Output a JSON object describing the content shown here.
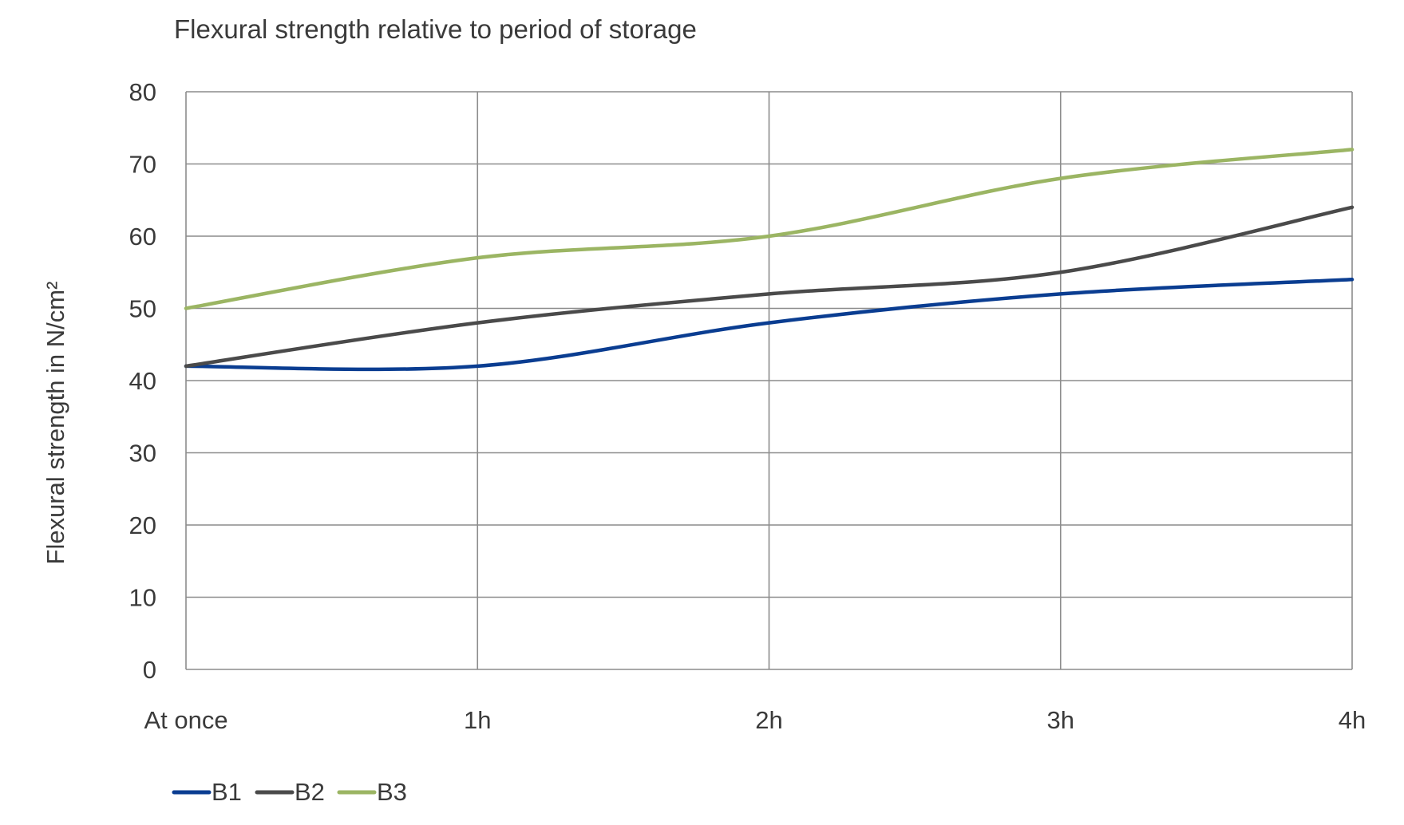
{
  "chart_data": {
    "type": "line",
    "title": "Flexural strength relative to period of storage",
    "xlabel": "",
    "ylabel": "Flexural strength  in N/cm²",
    "categories": [
      "At once",
      "1h",
      "2h",
      "3h",
      "4h"
    ],
    "ylim": [
      0,
      80
    ],
    "yticks": [
      0,
      10,
      20,
      30,
      40,
      50,
      60,
      70,
      80
    ],
    "grid": true,
    "legend_position": "bottom-left",
    "series": [
      {
        "name": "B1",
        "color": "#0a3d91",
        "values": [
          42,
          42,
          48,
          52,
          54
        ]
      },
      {
        "name": "B2",
        "color": "#4a4a4a",
        "values": [
          42,
          48,
          52,
          55,
          64
        ]
      },
      {
        "name": "B3",
        "color": "#9bb563",
        "values": [
          50,
          57,
          60,
          68,
          72
        ]
      }
    ]
  }
}
